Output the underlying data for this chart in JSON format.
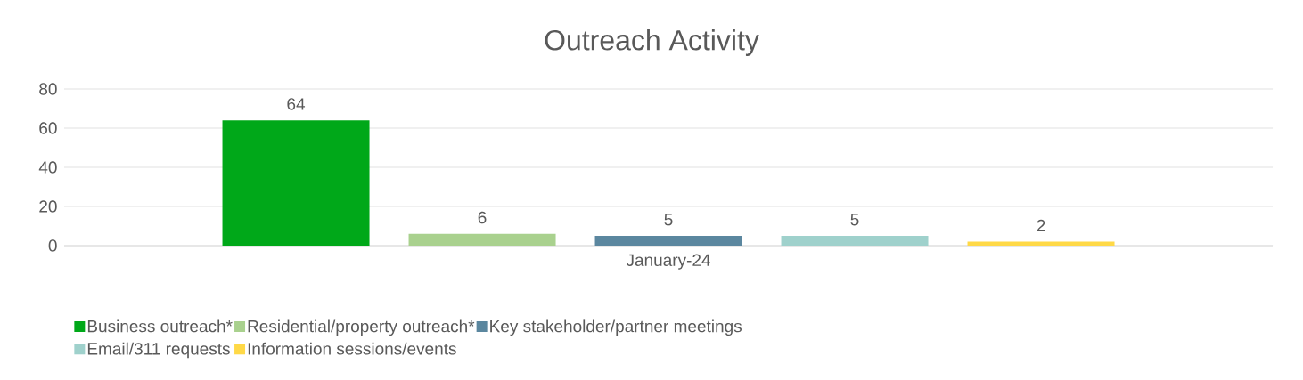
{
  "chart_data": {
    "type": "bar",
    "title": "Outreach Activity",
    "categories": [
      "January-24"
    ],
    "series": [
      {
        "name": "Business outreach*",
        "color": "#00a819",
        "values": [
          64
        ]
      },
      {
        "name": "Residential/property outreach*",
        "color": "#a9d18e",
        "values": [
          6
        ]
      },
      {
        "name": "Key stakeholder/partner meetings",
        "color": "#5b879f",
        "values": [
          5
        ]
      },
      {
        "name": "Email/311 requests",
        "color": "#9fd1cc",
        "values": [
          5
        ]
      },
      {
        "name": "Information sessions/events",
        "color": "#ffd947",
        "values": [
          2
        ]
      }
    ],
    "ylim": [
      0,
      80
    ],
    "yticks": [
      0,
      20,
      40,
      60,
      80
    ],
    "grid": "y",
    "legend": "bottom",
    "data_labels": true
  }
}
